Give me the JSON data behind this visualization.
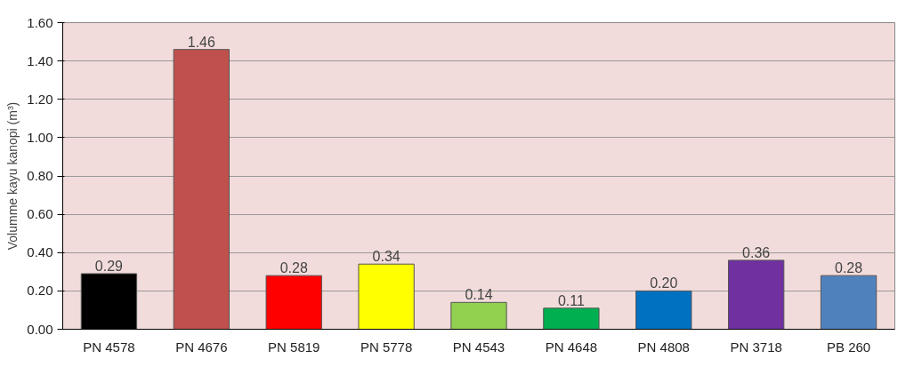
{
  "chart_data": {
    "type": "bar",
    "ylabel": "Volumme kayu kanopi (m³)",
    "categories": [
      "PN 4578",
      "PN 4676",
      "PN 5819",
      "PN 5778",
      "PN 4543",
      "PN 4648",
      "PN 4808",
      "PN 3718",
      "PB 260"
    ],
    "values": [
      0.29,
      1.46,
      0.28,
      0.34,
      0.14,
      0.11,
      0.2,
      0.36,
      0.28
    ],
    "colors": [
      "#000000",
      "#c0504d",
      "#ff0000",
      "#ffff00",
      "#92d050",
      "#00b050",
      "#0070c0",
      "#7030a0",
      "#4f81bd"
    ],
    "value_labels": [
      "0.29",
      "1.46",
      "0.28",
      "0.34",
      "0.14",
      "0.11",
      "0.20",
      "0.36",
      "0.28"
    ],
    "ylim": [
      0,
      1.6
    ],
    "yticks": [
      {
        "value": 0,
        "label": "0.00"
      },
      {
        "value": 0.2,
        "label": "0.20"
      },
      {
        "value": 0.4,
        "label": "0.40"
      },
      {
        "value": 0.6,
        "label": "0.60"
      },
      {
        "value": 0.8,
        "label": "0.80"
      },
      {
        "value": 1.0,
        "label": "1.00"
      },
      {
        "value": 1.2,
        "label": "1.20"
      },
      {
        "value": 1.4,
        "label": "1.40"
      },
      {
        "value": 1.6,
        "label": "1.60"
      }
    ],
    "grid": "y"
  }
}
